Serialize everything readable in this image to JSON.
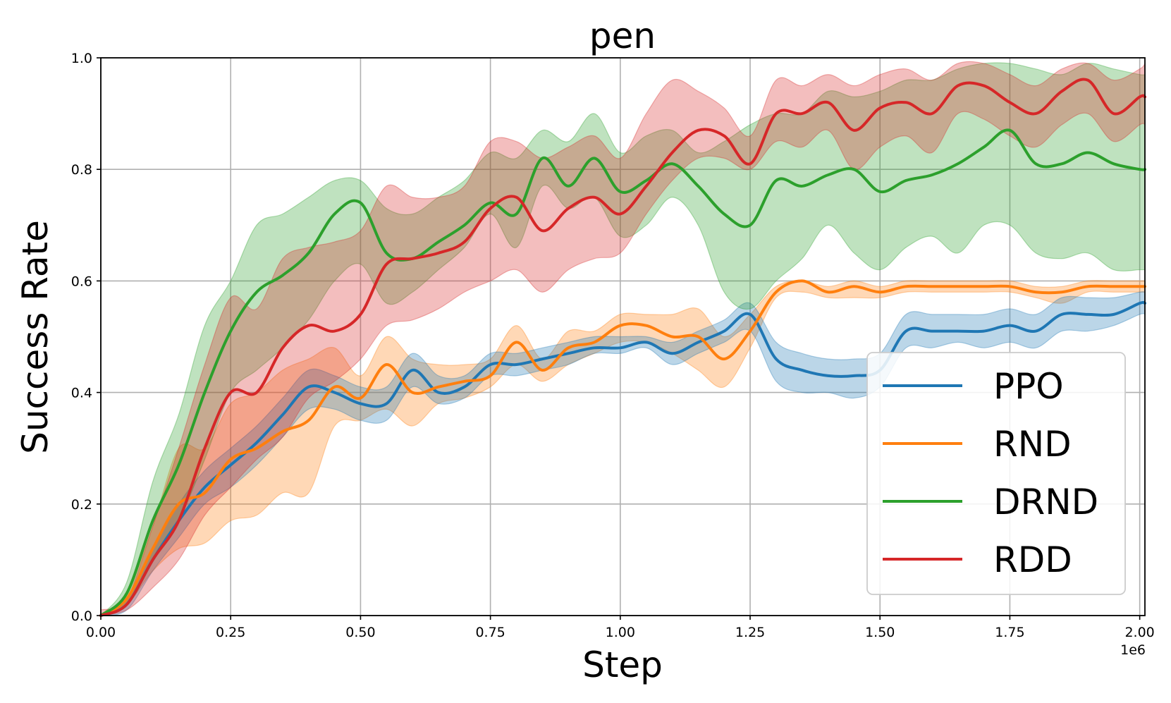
{
  "chart_data": {
    "type": "line",
    "title": "pen",
    "xlabel": "Step",
    "ylabel": "Success Rate",
    "x_offset_label": "1e6",
    "xlim": [
      0,
      2.01
    ],
    "ylim": [
      0,
      1.0
    ],
    "x_ticks": [
      0,
      0.25,
      0.5,
      0.75,
      1.0,
      1.25,
      1.5,
      1.75,
      2.0
    ],
    "x_tick_labels": [
      "0.00",
      "0.25",
      "0.50",
      "0.75",
      "1.00",
      "1.25",
      "1.50",
      "1.75",
      "2.00"
    ],
    "y_ticks": [
      0,
      0.2,
      0.4,
      0.6,
      0.8,
      1.0
    ],
    "y_tick_labels": [
      "0.0",
      "0.2",
      "0.4",
      "0.6",
      "0.8",
      "1.0"
    ],
    "grid": true,
    "legend_position": "lower-right",
    "x": [
      0,
      0.05,
      0.1,
      0.15,
      0.2,
      0.25,
      0.3,
      0.35,
      0.4,
      0.45,
      0.5,
      0.55,
      0.6,
      0.65,
      0.7,
      0.75,
      0.8,
      0.85,
      0.9,
      0.95,
      1.0,
      1.05,
      1.1,
      1.15,
      1.2,
      1.25,
      1.3,
      1.35,
      1.4,
      1.45,
      1.5,
      1.55,
      1.6,
      1.65,
      1.7,
      1.75,
      1.8,
      1.85,
      1.9,
      1.95,
      2.0,
      2.01
    ],
    "series": [
      {
        "name": "PPO",
        "color": "#1f77b4",
        "values": [
          0.0,
          0.02,
          0.1,
          0.17,
          0.23,
          0.27,
          0.31,
          0.36,
          0.41,
          0.4,
          0.38,
          0.38,
          0.44,
          0.4,
          0.41,
          0.45,
          0.45,
          0.46,
          0.47,
          0.48,
          0.48,
          0.49,
          0.47,
          0.49,
          0.51,
          0.54,
          0.46,
          0.44,
          0.43,
          0.43,
          0.44,
          0.51,
          0.51,
          0.51,
          0.51,
          0.52,
          0.51,
          0.54,
          0.54,
          0.54,
          0.56,
          0.56
        ],
        "lower": [
          0.0,
          0.01,
          0.08,
          0.14,
          0.2,
          0.23,
          0.27,
          0.32,
          0.37,
          0.37,
          0.35,
          0.35,
          0.41,
          0.38,
          0.39,
          0.43,
          0.43,
          0.44,
          0.45,
          0.47,
          0.47,
          0.48,
          0.45,
          0.47,
          0.49,
          0.51,
          0.42,
          0.4,
          0.4,
          0.39,
          0.41,
          0.48,
          0.48,
          0.49,
          0.48,
          0.49,
          0.48,
          0.51,
          0.51,
          0.52,
          0.54,
          0.54
        ],
        "upper": [
          0.0,
          0.03,
          0.12,
          0.2,
          0.26,
          0.3,
          0.34,
          0.39,
          0.44,
          0.43,
          0.41,
          0.41,
          0.47,
          0.43,
          0.43,
          0.47,
          0.47,
          0.48,
          0.49,
          0.5,
          0.5,
          0.5,
          0.49,
          0.51,
          0.53,
          0.56,
          0.49,
          0.47,
          0.46,
          0.46,
          0.47,
          0.54,
          0.54,
          0.54,
          0.54,
          0.55,
          0.54,
          0.57,
          0.57,
          0.57,
          0.58,
          0.58
        ]
      },
      {
        "name": "RND",
        "color": "#ff7f0e",
        "values": [
          0.0,
          0.03,
          0.12,
          0.2,
          0.22,
          0.28,
          0.3,
          0.33,
          0.35,
          0.41,
          0.39,
          0.45,
          0.4,
          0.41,
          0.42,
          0.43,
          0.49,
          0.44,
          0.48,
          0.49,
          0.52,
          0.52,
          0.5,
          0.5,
          0.46,
          0.51,
          0.58,
          0.6,
          0.58,
          0.59,
          0.58,
          0.59,
          0.59,
          0.59,
          0.59,
          0.59,
          0.58,
          0.58,
          0.59,
          0.59,
          0.59,
          0.59
        ],
        "lower": [
          0.0,
          0.02,
          0.08,
          0.12,
          0.13,
          0.17,
          0.18,
          0.22,
          0.22,
          0.34,
          0.35,
          0.37,
          0.34,
          0.38,
          0.39,
          0.41,
          0.45,
          0.42,
          0.45,
          0.47,
          0.49,
          0.49,
          0.47,
          0.44,
          0.41,
          0.48,
          0.57,
          0.58,
          0.57,
          0.57,
          0.57,
          0.58,
          0.58,
          0.58,
          0.58,
          0.58,
          0.57,
          0.56,
          0.58,
          0.58,
          0.58,
          0.58
        ],
        "upper": [
          0.0,
          0.04,
          0.16,
          0.3,
          0.3,
          0.38,
          0.4,
          0.44,
          0.46,
          0.48,
          0.43,
          0.5,
          0.46,
          0.45,
          0.45,
          0.46,
          0.52,
          0.46,
          0.51,
          0.51,
          0.54,
          0.54,
          0.54,
          0.55,
          0.5,
          0.54,
          0.59,
          0.6,
          0.59,
          0.6,
          0.59,
          0.6,
          0.6,
          0.6,
          0.6,
          0.6,
          0.59,
          0.59,
          0.6,
          0.6,
          0.6,
          0.6
        ]
      },
      {
        "name": "DRND",
        "color": "#2ca02c",
        "values": [
          0.0,
          0.04,
          0.17,
          0.27,
          0.4,
          0.51,
          0.58,
          0.61,
          0.65,
          0.72,
          0.74,
          0.65,
          0.64,
          0.67,
          0.7,
          0.74,
          0.72,
          0.82,
          0.77,
          0.82,
          0.76,
          0.78,
          0.81,
          0.77,
          0.72,
          0.7,
          0.78,
          0.77,
          0.79,
          0.8,
          0.76,
          0.78,
          0.79,
          0.81,
          0.84,
          0.87,
          0.81,
          0.81,
          0.83,
          0.81,
          0.8,
          0.8
        ],
        "lower": [
          0.0,
          0.02,
          0.1,
          0.17,
          0.28,
          0.4,
          0.44,
          0.48,
          0.53,
          0.6,
          0.63,
          0.56,
          0.58,
          0.62,
          0.66,
          0.72,
          0.66,
          0.77,
          0.73,
          0.75,
          0.68,
          0.7,
          0.75,
          0.7,
          0.58,
          0.55,
          0.6,
          0.64,
          0.7,
          0.65,
          0.62,
          0.66,
          0.68,
          0.65,
          0.7,
          0.7,
          0.65,
          0.64,
          0.65,
          0.62,
          0.62,
          0.62
        ],
        "upper": [
          0.0,
          0.06,
          0.24,
          0.36,
          0.52,
          0.6,
          0.7,
          0.72,
          0.75,
          0.78,
          0.78,
          0.73,
          0.72,
          0.75,
          0.78,
          0.83,
          0.82,
          0.87,
          0.85,
          0.9,
          0.83,
          0.86,
          0.87,
          0.83,
          0.85,
          0.88,
          0.9,
          0.9,
          0.94,
          0.93,
          0.94,
          0.96,
          0.96,
          0.98,
          0.99,
          0.99,
          0.98,
          0.97,
          0.99,
          0.98,
          0.97,
          0.97
        ]
      },
      {
        "name": "RDD",
        "color": "#d62728",
        "values": [
          0.0,
          0.02,
          0.1,
          0.17,
          0.3,
          0.4,
          0.4,
          0.48,
          0.52,
          0.51,
          0.54,
          0.63,
          0.64,
          0.65,
          0.67,
          0.73,
          0.75,
          0.69,
          0.73,
          0.75,
          0.72,
          0.77,
          0.83,
          0.87,
          0.86,
          0.81,
          0.9,
          0.9,
          0.92,
          0.87,
          0.91,
          0.92,
          0.9,
          0.95,
          0.95,
          0.92,
          0.9,
          0.94,
          0.96,
          0.9,
          0.93,
          0.93
        ],
        "lower": [
          0.0,
          0.01,
          0.05,
          0.1,
          0.18,
          0.23,
          0.28,
          0.32,
          0.39,
          0.42,
          0.46,
          0.52,
          0.53,
          0.55,
          0.58,
          0.6,
          0.62,
          0.58,
          0.62,
          0.64,
          0.65,
          0.72,
          0.78,
          0.82,
          0.82,
          0.8,
          0.85,
          0.84,
          0.87,
          0.8,
          0.84,
          0.86,
          0.83,
          0.9,
          0.89,
          0.86,
          0.84,
          0.88,
          0.9,
          0.85,
          0.88,
          0.88
        ],
        "upper": [
          0.01,
          0.03,
          0.16,
          0.3,
          0.45,
          0.57,
          0.55,
          0.64,
          0.66,
          0.67,
          0.69,
          0.77,
          0.75,
          0.75,
          0.77,
          0.85,
          0.85,
          0.82,
          0.84,
          0.86,
          0.82,
          0.9,
          0.96,
          0.94,
          0.91,
          0.86,
          0.96,
          0.95,
          0.97,
          0.95,
          0.97,
          0.98,
          0.96,
          0.99,
          0.99,
          0.97,
          0.95,
          0.98,
          0.99,
          0.96,
          0.98,
          0.99
        ]
      }
    ]
  }
}
